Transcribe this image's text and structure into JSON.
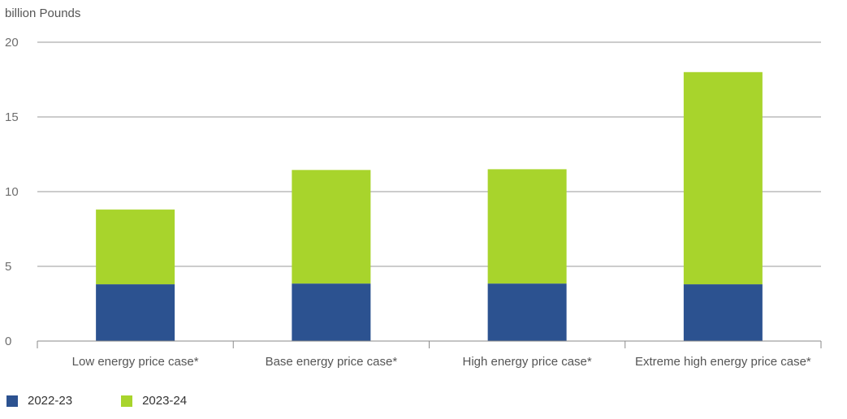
{
  "chart_data": {
    "type": "bar",
    "stacked": true,
    "ylabel": "billion Pounds",
    "ylim": [
      0,
      20
    ],
    "yticks": [
      0,
      5,
      10,
      15,
      20
    ],
    "grid": true,
    "categories": [
      "Low energy price case*",
      "Base energy price case*",
      "High energy price case*",
      "Extreme high energy price case*"
    ],
    "series": [
      {
        "name": "2022-23",
        "color": "#2c5290",
        "values": [
          3.8,
          3.85,
          3.85,
          3.8
        ]
      },
      {
        "name": "2023-24",
        "color": "#a8d42c",
        "values": [
          5.0,
          7.6,
          7.65,
          14.2
        ]
      }
    ],
    "legend_position": "bottom-left"
  }
}
